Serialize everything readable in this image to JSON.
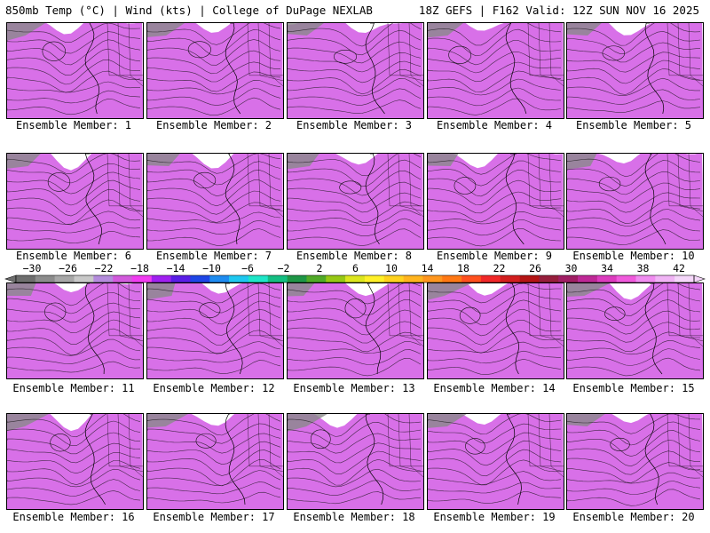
{
  "header": {
    "left": "850mb Temp (°C) | Wind (kts) | College of DuPage NEXLAB",
    "right": "18Z GEFS | F162 Valid: 12Z SUN NOV 16 2025"
  },
  "panels": [
    {
      "caption": "Ensemble Member: 1"
    },
    {
      "caption": "Ensemble Member: 2"
    },
    {
      "caption": "Ensemble Member: 3"
    },
    {
      "caption": "Ensemble Member: 4"
    },
    {
      "caption": "Ensemble Member: 5"
    },
    {
      "caption": "Ensemble Member: 6"
    },
    {
      "caption": "Ensemble Member: 7"
    },
    {
      "caption": "Ensemble Member: 8"
    },
    {
      "caption": "Ensemble Member: 9"
    },
    {
      "caption": "Ensemble Member: 10"
    },
    {
      "caption": "Ensemble Member: 11"
    },
    {
      "caption": "Ensemble Member: 12"
    },
    {
      "caption": "Ensemble Member: 13"
    },
    {
      "caption": "Ensemble Member: 14"
    },
    {
      "caption": "Ensemble Member: 15"
    },
    {
      "caption": "Ensemble Member: 16"
    },
    {
      "caption": "Ensemble Member: 17"
    },
    {
      "caption": "Ensemble Member: 18"
    },
    {
      "caption": "Ensemble Member: 19"
    },
    {
      "caption": "Ensemble Member: 20"
    }
  ],
  "colorbar": {
    "labels": [
      "-30",
      "-26",
      "-22",
      "-18",
      "-14",
      "-10",
      "-6",
      "-2",
      "2",
      "6",
      "10",
      "14",
      "18",
      "22",
      "26",
      "30",
      "34",
      "38",
      "42"
    ],
    "colors": [
      "#6e6e6e",
      "#8c8c8c",
      "#a8a8a8",
      "#c8c8c8",
      "#b48cdc",
      "#d25adc",
      "#f03cf0",
      "#a020f0",
      "#5a1ee6",
      "#1e46e6",
      "#1e8cf0",
      "#1ec8f0",
      "#1ee6c8",
      "#14be82",
      "#1e9646",
      "#50aa28",
      "#96c814",
      "#dce61e",
      "#fff028",
      "#ffd21e",
      "#ffb41e",
      "#ff961e",
      "#ff7814",
      "#ff501e",
      "#f02828",
      "#d21e1e",
      "#b41414",
      "#961e3c",
      "#a01e64",
      "#be2896",
      "#dc3cbe",
      "#f05adc",
      "#f08cf0",
      "#f0b4f5",
      "#f5d7fa"
    ]
  },
  "palette": {
    "map_colors": [
      "#d870e8",
      "#b23fd6",
      "#7d2fd0",
      "#3a46e0",
      "#1e8cf0",
      "#22c6e6",
      "#1ed7a6",
      "#16b875",
      "#6cc22c",
      "#c8dc20",
      "#f7e62a",
      "#ffd21e",
      "#ffb41e",
      "#ff961e"
    ],
    "land_border": "#000000",
    "contour": "#111111"
  }
}
